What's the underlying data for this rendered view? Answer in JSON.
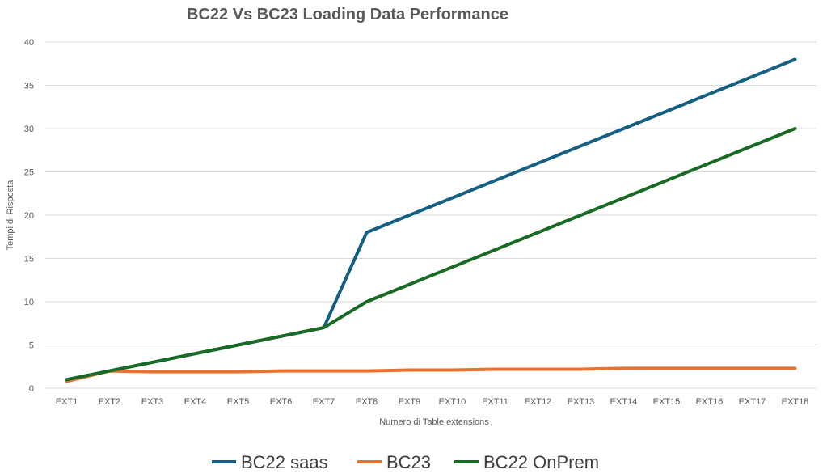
{
  "chart_data": {
    "type": "line",
    "title": "BC22 Vs BC23 Loading Data Performance",
    "xlabel": "Numero di Table extensions",
    "ylabel": "Tempi di Risposta",
    "ylim": [
      0,
      40
    ],
    "yticks": [
      0,
      5,
      10,
      15,
      20,
      25,
      30,
      35,
      40
    ],
    "grid": true,
    "legend_position": "bottom",
    "categories": [
      "EXT1",
      "EXT2",
      "EXT3",
      "EXT4",
      "EXT5",
      "EXT6",
      "EXT7",
      "EXT8",
      "EXT9",
      "EXT10",
      "EXT11",
      "EXT12",
      "EXT13",
      "EXT14",
      "EXT15",
      "EXT16",
      "EXT17",
      "EXT18"
    ],
    "series": [
      {
        "name": "BC22 saas",
        "color": "#156082",
        "values": [
          1,
          2,
          3,
          4,
          5,
          6,
          7,
          18,
          20,
          22,
          24,
          26,
          28,
          30,
          32,
          34,
          36,
          38
        ]
      },
      {
        "name": "BC23",
        "color": "#E97132",
        "values": [
          0.8,
          2,
          1.9,
          1.9,
          1.9,
          2,
          2,
          2,
          2.1,
          2.1,
          2.2,
          2.2,
          2.2,
          2.3,
          2.3,
          2.3,
          2.3,
          2.3
        ]
      },
      {
        "name": "BC22 OnPrem",
        "color": "#196B24",
        "values": [
          1,
          2,
          3,
          4,
          5,
          6,
          7,
          10,
          12,
          14,
          16,
          18,
          20,
          22,
          24,
          26,
          28,
          30
        ]
      }
    ]
  }
}
